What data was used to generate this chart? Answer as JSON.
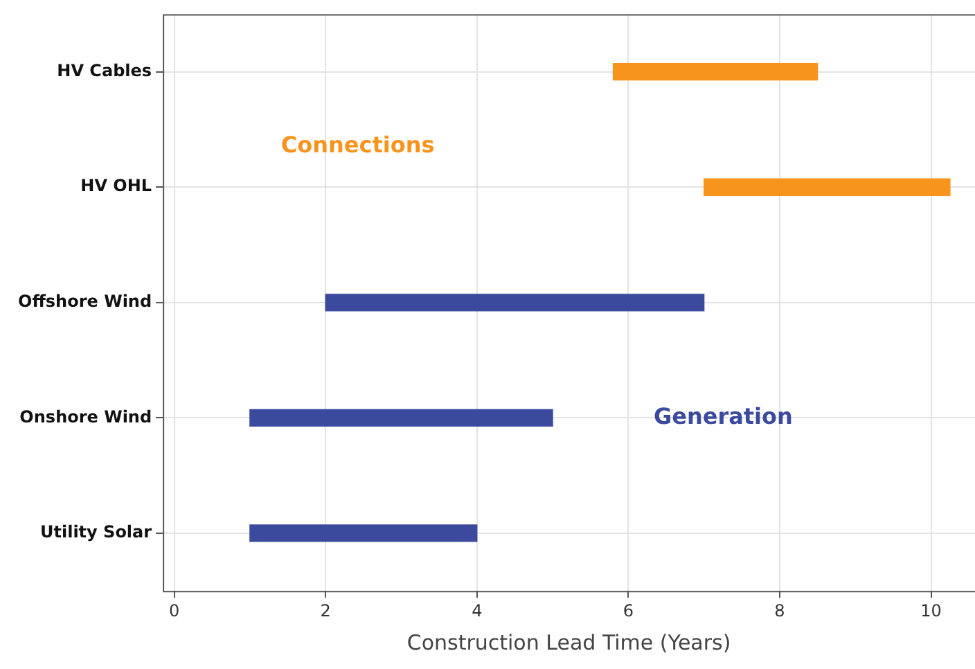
{
  "chart_data": {
    "type": "bar",
    "orientation": "horizontal",
    "categories": [
      "HV Cables",
      "HV OHL",
      "Offshore Wind",
      "Onshore Wind",
      "Utility Solar"
    ],
    "base": [
      5.8,
      7,
      2,
      1,
      1
    ],
    "values": [
      2.7,
      3.25,
      5,
      4,
      3
    ],
    "colors": [
      "#f7941d",
      "#f7941d",
      "#3c4a9e",
      "#3c4a9e",
      "#3c4a9e"
    ],
    "xlabel": "Construction Lead Time (Years)",
    "xlim": [
      -0.15,
      10.58
    ],
    "xticks": [
      0,
      2,
      4,
      6,
      8,
      10
    ],
    "grid": true,
    "legend": false,
    "annotations": [
      "Connections",
      "Generation"
    ]
  }
}
